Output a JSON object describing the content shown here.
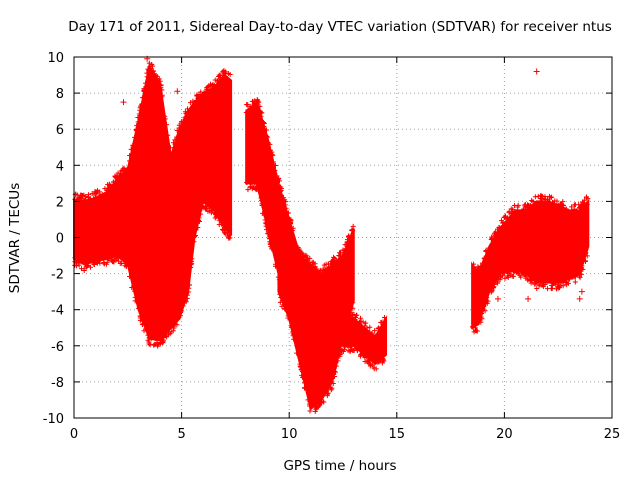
{
  "chart_data": {
    "type": "scatter",
    "title": "Day 171 of 2011, Sidereal Day-to-day VTEC variation (SDTVAR) for receiver ntus",
    "xlabel": "GPS time / hours",
    "ylabel": "SDTVAR / TECUs",
    "xlim": [
      0,
      25
    ],
    "ylim": [
      -10,
      10
    ],
    "xticks": [
      0,
      5,
      10,
      15,
      20,
      25
    ],
    "yticks": [
      -10,
      -8,
      -6,
      -4,
      -2,
      0,
      2,
      4,
      6,
      8,
      10
    ],
    "grid": true,
    "marker": "+",
    "series_color": "#ff0000",
    "series": [
      {
        "name": "SDTVAR",
        "segments": [
          {
            "x": [
              0.0,
              0.5,
              1.0,
              1.5,
              2.0,
              2.5,
              3.0,
              3.5,
              4.0,
              4.5,
              4.9
            ],
            "upper": [
              2.1,
              2.0,
              2.2,
              2.5,
              3.2,
              3.8,
              6.5,
              9.5,
              8.5,
              4.5,
              6.0
            ],
            "lower": [
              -1.2,
              -1.5,
              -1.3,
              -1.2,
              -1.0,
              -1.5,
              -4.0,
              -5.6,
              -5.7,
              -5.0,
              -4.5
            ]
          },
          {
            "x": [
              4.9,
              5.3,
              5.6,
              6.0,
              6.5,
              7.0,
              7.3
            ],
            "upper": [
              6.0,
              7.0,
              7.5,
              8.0,
              8.3,
              9.0,
              8.7
            ],
            "lower": [
              -4.5,
              -3.0,
              0.0,
              2.0,
              1.5,
              0.5,
              0.2
            ]
          },
          {
            "x": [
              8.0,
              8.5,
              9.0,
              9.5,
              10.0,
              10.5,
              11.0
            ],
            "upper": [
              7.0,
              7.5,
              5.5,
              3.0,
              1.0,
              -1.0,
              -2.0
            ],
            "lower": [
              3.0,
              3.0,
              0.5,
              -2.0,
              -4.0,
              -5.5,
              -6.5
            ]
          },
          {
            "x": [
              9.5,
              10.0,
              10.5,
              11.0,
              11.5,
              12.0,
              12.5,
              13.0
            ],
            "upper": [
              1.5,
              0.0,
              -1.0,
              -1.5,
              -2.0,
              -1.5,
              -1.0,
              0.5
            ],
            "lower": [
              -3.0,
              -4.5,
              -7.0,
              -9.5,
              -9.0,
              -8.0,
              -5.5,
              -3.5
            ]
          },
          {
            "x": [
              11.0,
              12.0,
              13.0,
              13.5,
              14.0,
              14.5
            ],
            "upper": [
              -3.5,
              -4.0,
              -4.5,
              -5.0,
              -5.5,
              -4.5
            ],
            "lower": [
              -6.5,
              -6.0,
              -6.0,
              -6.5,
              -7.0,
              -6.5
            ]
          },
          {
            "x": [
              18.5,
              18.8,
              19.3,
              19.8,
              20.5,
              21.0,
              21.5,
              22.0,
              22.5,
              23.0,
              23.5,
              23.9
            ],
            "upper": [
              -1.5,
              -2.0,
              -0.5,
              0.5,
              1.5,
              1.5,
              2.0,
              2.0,
              1.8,
              1.5,
              1.5,
              2.0
            ],
            "lower": [
              -5.0,
              -4.8,
              -3.0,
              -2.0,
              -1.8,
              -2.0,
              -2.5,
              -2.5,
              -2.5,
              -2.3,
              -2.0,
              -0.5
            ]
          }
        ],
        "outliers": [
          {
            "x": 2.3,
            "y": 7.5
          },
          {
            "x": 3.4,
            "y": 9.9
          },
          {
            "x": 4.8,
            "y": 8.1
          },
          {
            "x": 19.7,
            "y": -3.4
          },
          {
            "x": 19.8,
            "y": -1.6
          },
          {
            "x": 21.1,
            "y": -3.4
          },
          {
            "x": 21.5,
            "y": 9.2
          },
          {
            "x": 23.5,
            "y": -3.4
          },
          {
            "x": 23.6,
            "y": -3.0
          }
        ]
      }
    ]
  }
}
